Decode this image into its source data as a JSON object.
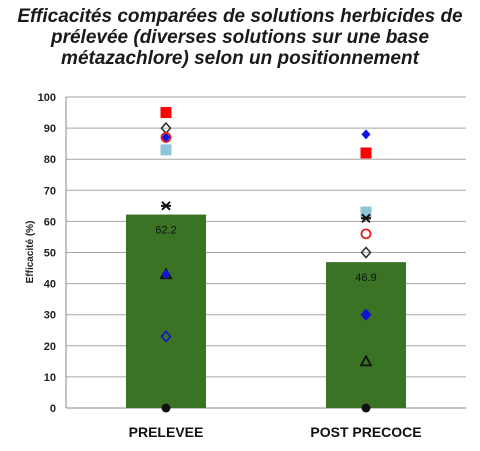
{
  "chart_data": {
    "type": "bar",
    "title_lines": [
      "Efficacités comparées de solutions herbicides de",
      "prélevée (diverses solutions sur une base",
      "métazachlore) selon un positionnement"
    ],
    "ylabel": "Efficacité (%)",
    "xlabel": "",
    "ylim": [
      0,
      100
    ],
    "y_ticks": [
      0,
      10,
      20,
      30,
      40,
      50,
      60,
      70,
      80,
      90,
      100
    ],
    "grid": true,
    "categories": [
      "PRELEVEE",
      "POST PRECOCE"
    ],
    "bars": {
      "values": [
        62.2,
        46.9
      ],
      "labels": [
        "62.2",
        "46.9"
      ],
      "color": "#3a7324"
    },
    "markers": [
      {
        "style": "filled-square",
        "color": "#ff0000",
        "values": [
          95,
          82
        ]
      },
      {
        "style": "open-diamond",
        "color": "#333333",
        "values": [
          90,
          50
        ]
      },
      {
        "style": "filled-diamond",
        "color": "#1010e0",
        "values": [
          87,
          88
        ]
      },
      {
        "style": "open-circle",
        "color": "#e02020",
        "values": [
          87,
          56
        ]
      },
      {
        "style": "filled-square",
        "color": "#90c4d8",
        "values": [
          83,
          63
        ]
      },
      {
        "style": "star",
        "color": "#111111",
        "values": [
          65,
          61
        ]
      },
      {
        "style": "open-triangle",
        "color": "#111111",
        "values": [
          43,
          15
        ]
      },
      {
        "style": "filled-diamond",
        "color": "#1414d0",
        "values": [
          43,
          30
        ]
      },
      {
        "style": "open-diamond",
        "color": "#1414d0",
        "values": [
          23,
          30
        ]
      },
      {
        "style": "filled-circle",
        "color": "#111111",
        "values": [
          0,
          0
        ]
      }
    ]
  }
}
